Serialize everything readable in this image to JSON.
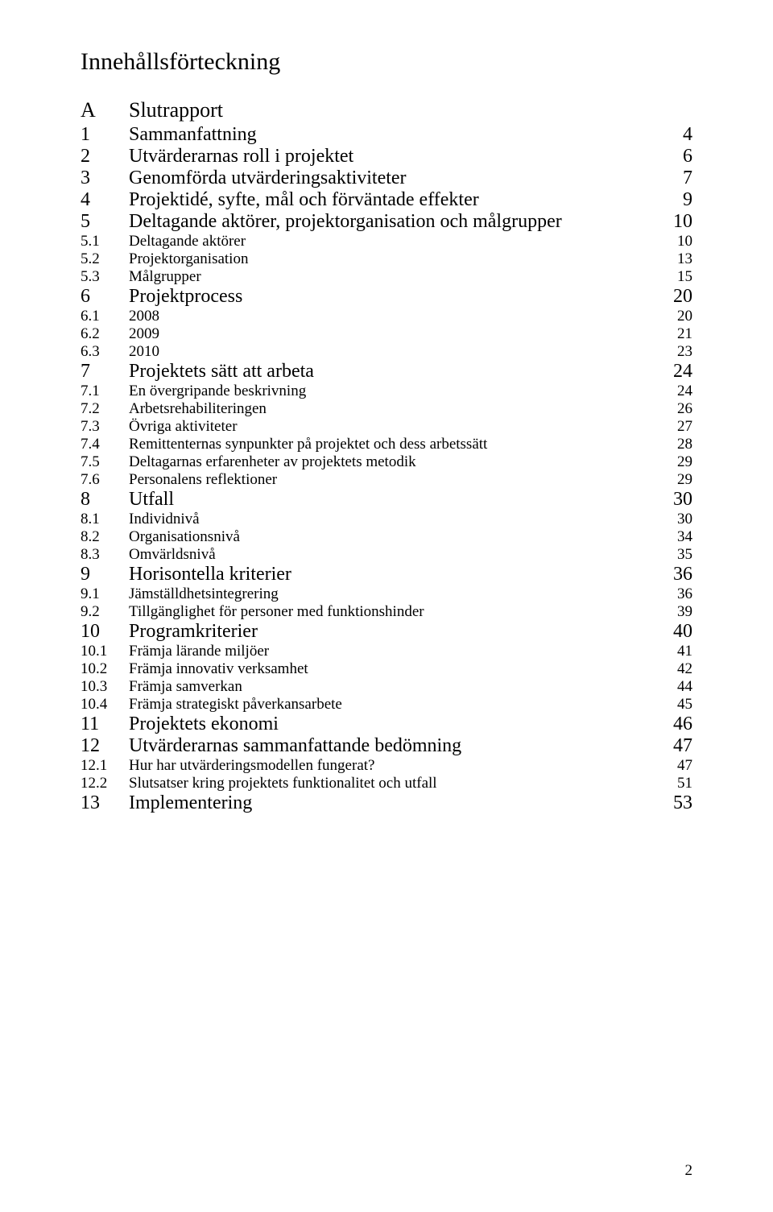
{
  "title": "Innehållsförteckning",
  "sectionLetter": "A",
  "sectionLabel": "Slutrapport",
  "pageNumber": "2",
  "entries": [
    {
      "level": 1,
      "num": "1",
      "text": "Sammanfattning",
      "page": "4"
    },
    {
      "level": 1,
      "num": "2",
      "text": "Utvärderarnas roll i projektet",
      "page": "6"
    },
    {
      "level": 1,
      "num": "3",
      "text": "Genomförda utvärderingsaktiviteter",
      "page": "7"
    },
    {
      "level": 1,
      "num": "4",
      "text": "Projektidé, syfte, mål och förväntade effekter",
      "page": "9"
    },
    {
      "level": 1,
      "num": "5",
      "text": "Deltagande aktörer, projektorganisation och målgrupper",
      "page": "10"
    },
    {
      "level": 2,
      "num": "5.1",
      "text": "Deltagande aktörer",
      "page": "10"
    },
    {
      "level": 2,
      "num": "5.2",
      "text": "Projektorganisation",
      "page": "13"
    },
    {
      "level": 2,
      "num": "5.3",
      "text": "Målgrupper",
      "page": "15"
    },
    {
      "level": 1,
      "num": "6",
      "text": "Projektprocess",
      "page": "20"
    },
    {
      "level": 2,
      "num": "6.1",
      "text": "2008",
      "page": "20"
    },
    {
      "level": 2,
      "num": "6.2",
      "text": "2009",
      "page": "21"
    },
    {
      "level": 2,
      "num": "6.3",
      "text": "2010",
      "page": "23"
    },
    {
      "level": 1,
      "num": "7",
      "text": "Projektets sätt att arbeta",
      "page": "24"
    },
    {
      "level": 2,
      "num": "7.1",
      "text": "En övergripande beskrivning",
      "page": "24"
    },
    {
      "level": 2,
      "num": "7.2",
      "text": "Arbetsrehabiliteringen",
      "page": "26"
    },
    {
      "level": 2,
      "num": "7.3",
      "text": "Övriga aktiviteter",
      "page": "27"
    },
    {
      "level": 2,
      "num": "7.4",
      "text": "Remittenternas synpunkter på projektet och dess arbetssätt",
      "page": "28"
    },
    {
      "level": 2,
      "num": "7.5",
      "text": "Deltagarnas erfarenheter av projektets metodik",
      "page": "29"
    },
    {
      "level": 2,
      "num": "7.6",
      "text": "Personalens reflektioner",
      "page": "29"
    },
    {
      "level": 1,
      "num": "8",
      "text": "Utfall",
      "page": "30"
    },
    {
      "level": 2,
      "num": "8.1",
      "text": "Individnivå",
      "page": "30"
    },
    {
      "level": 2,
      "num": "8.2",
      "text": "Organisationsnivå",
      "page": "34"
    },
    {
      "level": 2,
      "num": "8.3",
      "text": "Omvärldsnivå",
      "page": "35"
    },
    {
      "level": 1,
      "num": "9",
      "text": "Horisontella kriterier",
      "page": "36"
    },
    {
      "level": 2,
      "num": "9.1",
      "text": "Jämställdhetsintegrering",
      "page": "36"
    },
    {
      "level": 2,
      "num": "9.2",
      "text": "Tillgänglighet för personer med funktionshinder",
      "page": "39"
    },
    {
      "level": 1,
      "num": "10",
      "text": "Programkriterier",
      "page": "40"
    },
    {
      "level": 2,
      "num": "10.1",
      "text": "Främja lärande miljöer",
      "page": "41"
    },
    {
      "level": 2,
      "num": "10.2",
      "text": "Främja innovativ verksamhet",
      "page": "42"
    },
    {
      "level": 2,
      "num": "10.3",
      "text": "Främja samverkan",
      "page": "44"
    },
    {
      "level": 2,
      "num": "10.4",
      "text": "Främja strategiskt påverkansarbete",
      "page": "45"
    },
    {
      "level": 1,
      "num": "11",
      "text": "Projektets ekonomi",
      "page": "46"
    },
    {
      "level": 1,
      "num": "12",
      "text": "Utvärderarnas sammanfattande bedömning",
      "page": "47"
    },
    {
      "level": 2,
      "num": "12.1",
      "text": "Hur har utvärderingsmodellen fungerat?",
      "page": "47"
    },
    {
      "level": 2,
      "num": "12.2",
      "text": "Slutsatser kring projektets funktionalitet och utfall",
      "page": "51"
    },
    {
      "level": 1,
      "num": "13",
      "text": "Implementering",
      "page": "53"
    }
  ]
}
